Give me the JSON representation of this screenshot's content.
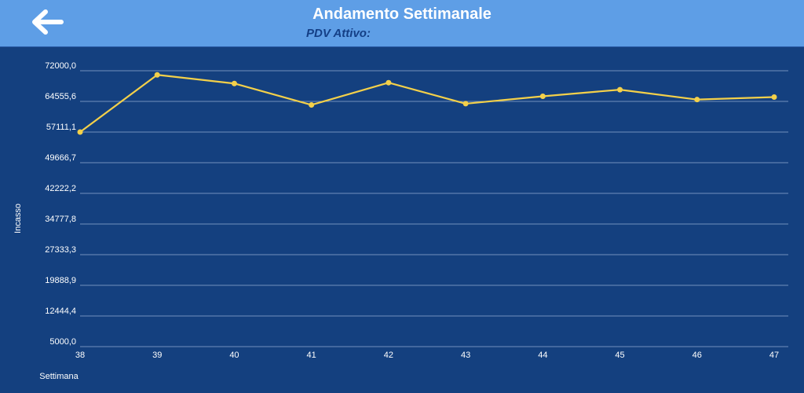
{
  "header": {
    "title": "Andamento Settimanale",
    "subtitle": "PDV Attivo:",
    "back_icon": "arrow-left-icon"
  },
  "colors": {
    "header_bg": "#5e9ee6",
    "plot_bg": "#14407f",
    "line": "#f3d04a",
    "grid": "#8aa4cc",
    "text": "#ffffff"
  },
  "chart_data": {
    "type": "line",
    "title": "",
    "xlabel": "Settimana",
    "ylabel": "Incasso",
    "x": [
      38,
      39,
      40,
      41,
      42,
      43,
      44,
      45,
      46,
      47
    ],
    "series": [
      {
        "values": [
          57111.1,
          71000,
          68900,
          63700,
          69100,
          64000,
          65800,
          67400,
          65000,
          65600
        ]
      }
    ],
    "ylim": [
      5000,
      72000
    ],
    "y_ticks": [
      "5000,0",
      "12444,4",
      "19888,9",
      "27333,3",
      "34777,8",
      "42222,2",
      "49666,7",
      "57111,1",
      "64555,6",
      "72000,0"
    ],
    "x_ticks": [
      "38",
      "39",
      "40",
      "41",
      "42",
      "43",
      "44",
      "45",
      "46",
      "47"
    ],
    "grid": true,
    "legend": "none"
  }
}
